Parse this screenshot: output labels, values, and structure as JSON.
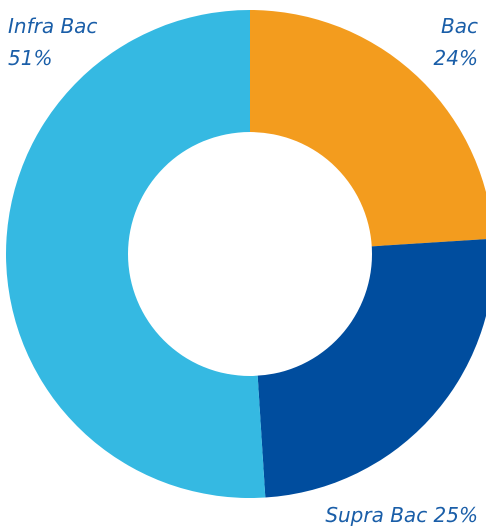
{
  "chart_data": {
    "type": "pie",
    "style": "donut",
    "categories": [
      "Bac",
      "Supra Bac",
      "Infra Bac"
    ],
    "values": [
      24,
      25,
      51
    ],
    "value_labels": [
      "24%",
      "25%",
      "51%"
    ],
    "colors": [
      "#f39c1e",
      "#004d9e",
      "#35b9e2"
    ],
    "label_color": "#1a5ea8",
    "start_angle_deg": 0,
    "direction": "clockwise",
    "legend": "none"
  },
  "labels": {
    "infra_name": "Infra Bac",
    "infra_value": "51%",
    "bac_name": "Bac",
    "bac_value": "24%",
    "supra_name": "Supra Bac",
    "supra_value": "25%"
  }
}
